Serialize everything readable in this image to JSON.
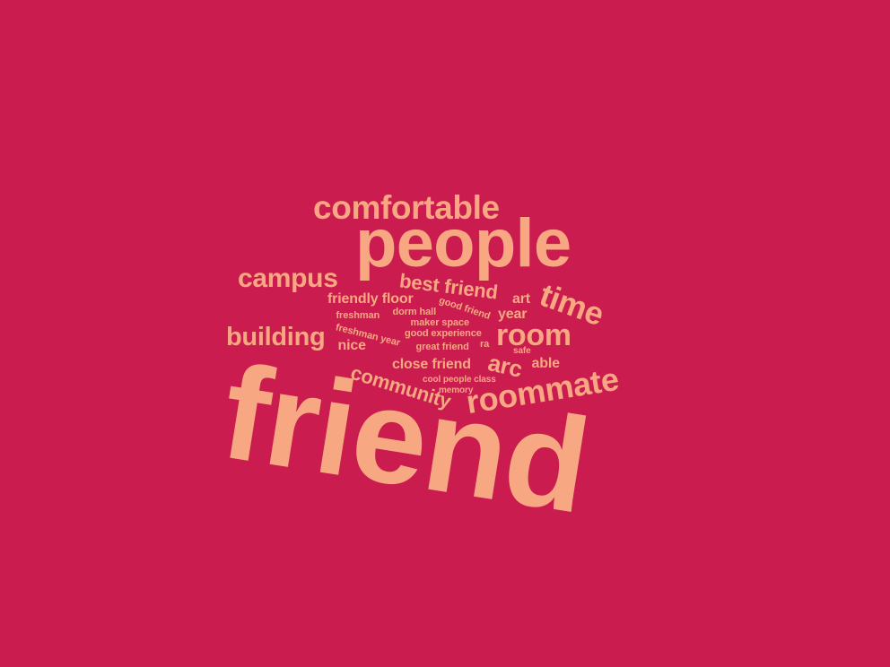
{
  "colors": {
    "background": "#CA1C4F",
    "word": "#F7A782"
  },
  "words": [
    "friend",
    "people",
    "comfortable",
    "roommate",
    "campus",
    "time",
    "building",
    "room",
    "community",
    "best friend",
    "arc",
    "close friend",
    "friendly floor",
    "art",
    "year",
    "able",
    "nice",
    "good friend",
    "freshman",
    "dorm hall",
    "maker space",
    "freshman year",
    "good experience",
    "great friend",
    "ra",
    "safe",
    "cool people class",
    "memory"
  ]
}
